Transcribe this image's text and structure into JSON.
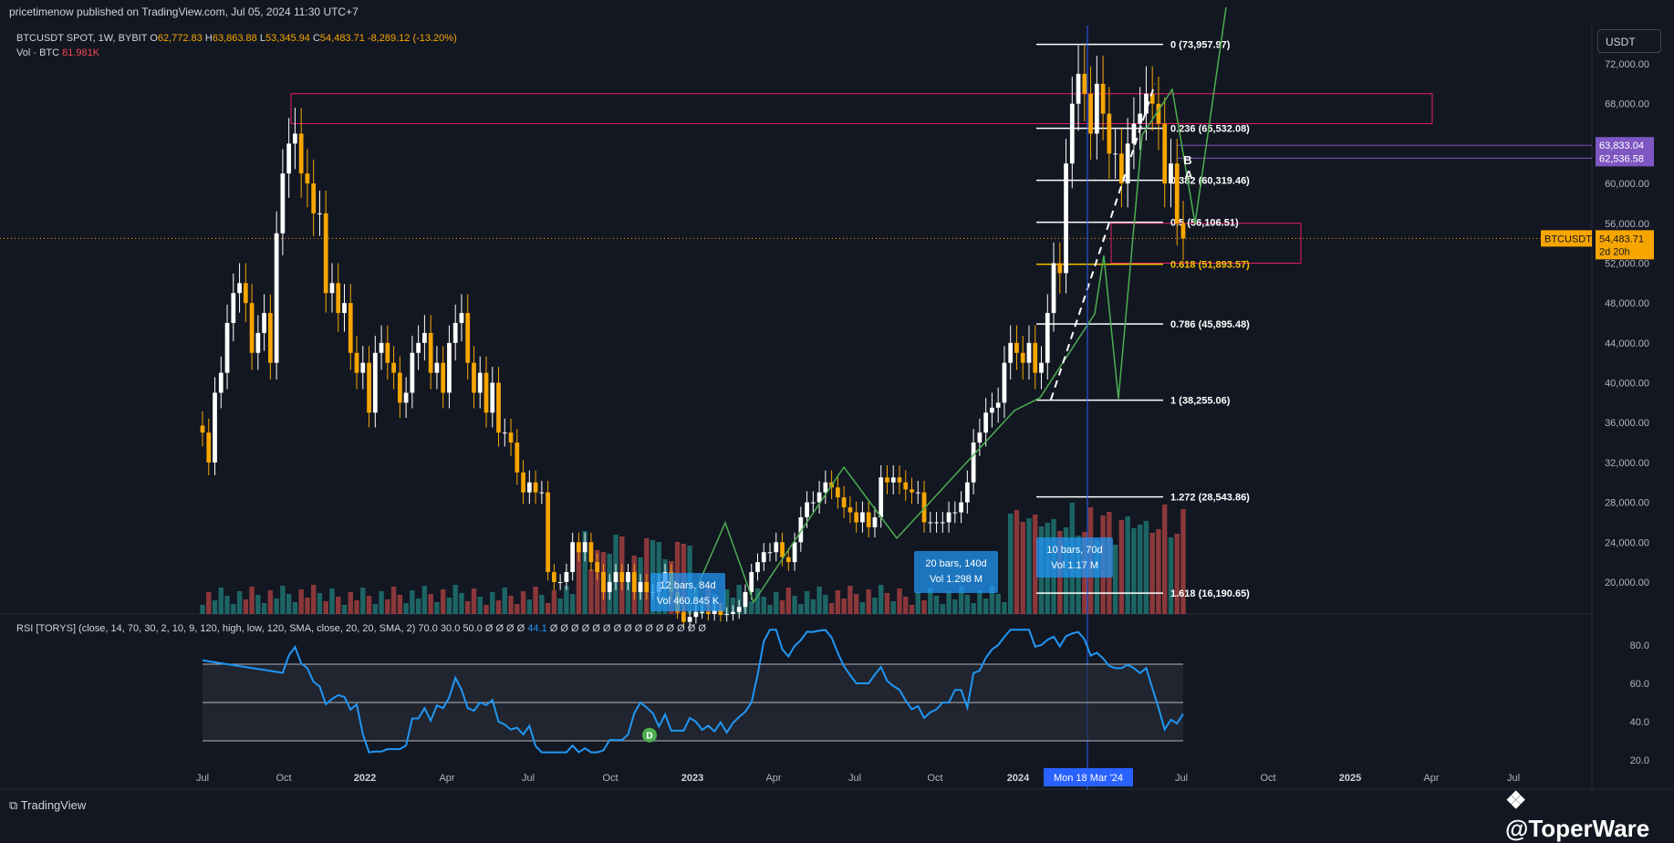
{
  "header": {
    "publisher": "pricetimenow published on TradingView.com, Jul 05, 2024 11:30 UTC+7",
    "symbol": "BTCUSDT SPOT, 1W, BYBIT",
    "open_label": "O",
    "open": "62,772.83",
    "high_label": "H",
    "high": "63,863.88",
    "low_label": "L",
    "low": "53,345.94",
    "close_label": "C",
    "close": "54,483.71",
    "change": "-8,289.12 (-13.20%)",
    "vol_label": "Vol · BTC",
    "vol": "81.981K"
  },
  "currency_button": "USDT",
  "rsi_header": {
    "text": "RSI [TORYS] (close, 14, 70, 30, 2, 10, 9, 120, high, low, 120, SMA, close, 20, 20, SMA, 2)  70.0  30.0  50.0  Ø  Ø  Ø  Ø",
    "value": "44.1",
    "tail": "Ø  Ø  Ø  Ø  Ø  Ø  Ø  Ø  Ø  Ø  Ø  Ø  Ø  Ø  Ø"
  },
  "footer": {
    "logo": "TradingView",
    "watermark": "@ToperWare"
  },
  "price_axis": [
    "72,000.00",
    "68,000.00",
    "64,000.00",
    "60,000.00",
    "56,000.00",
    "52,000.00",
    "48,000.00",
    "44,000.00",
    "40,000.00",
    "36,000.00",
    "32,000.00",
    "28,000.00",
    "24,000.00",
    "20,000.00"
  ],
  "price_tags": {
    "upper": "63,833.04",
    "lower": "62,536.58",
    "symbol": "BTCUSDT",
    "last": "54,483.71",
    "countdown": "2d 20h"
  },
  "rsi_axis": [
    "80.0",
    "60.0",
    "40.0",
    "20.0"
  ],
  "time_axis": [
    "Jul",
    "Oct",
    "2022",
    "Apr",
    "Jul",
    "Oct",
    "2023",
    "Apr",
    "Jul",
    "Oct",
    "2024",
    "Jul",
    "Oct",
    "2025",
    "Apr",
    "Jul"
  ],
  "crosshair_date": "Mon 18 Mar '24",
  "fib_levels": [
    {
      "label": "0 (73,957.97)"
    },
    {
      "label": "0.236 (65,532.08)"
    },
    {
      "label": "0.382 (60,319.46)"
    },
    {
      "label": "0.5 (56,106.51)"
    },
    {
      "label": "0.618 (51,893.57)"
    },
    {
      "label": "0.786 (45,895.48)"
    },
    {
      "label": "1 (38,255.06)"
    },
    {
      "label": "1.272 (28,543.86)"
    },
    {
      "label": "1.618 (16,190.65)"
    }
  ],
  "range_boxes": [
    {
      "bars": "12 bars, 84d",
      "vol": "Vol 460.845 K"
    },
    {
      "bars": "20 bars, 140d",
      "vol": "Vol 1.298 M"
    },
    {
      "bars": "10 bars, 70d",
      "vol": "Vol 1.17 M"
    }
  ],
  "pattern_labels": [
    "B",
    "A",
    "D"
  ],
  "colors": {
    "up": "#ffffff",
    "down": "#f7a600",
    "vol_up": "#26a69a",
    "vol_down": "#ef5350",
    "rsi": "#2196f3",
    "wave": "#4caf50",
    "zone": "#e91e63",
    "fib": "#ffffff",
    "fib_gold": "#f7c300",
    "crosshair": "#2962ff"
  },
  "chart_data": {
    "type": "candlestick",
    "title": "BTCUSDT SPOT, 1W, BYBIT",
    "x_range": [
      "2021-07",
      "2025-07"
    ],
    "ylim": [
      16000,
      76000
    ],
    "candles_close": [
      35000,
      32000,
      39000,
      41000,
      46000,
      49000,
      50000,
      48000,
      43000,
      45000,
      47000,
      42000,
      55000,
      61000,
      64000,
      65000,
      61000,
      60000,
      57000,
      57000,
      49000,
      50000,
      47000,
      48000,
      43000,
      41000,
      42000,
      37000,
      43000,
      44000,
      42000,
      41000,
      38000,
      39000,
      43000,
      44000,
      45000,
      41000,
      42000,
      39000,
      44000,
      46000,
      47000,
      42000,
      39000,
      41000,
      37000,
      40000,
      35000,
      35000,
      34000,
      31000,
      29000,
      30000,
      29000,
      29000,
      21000,
      20000,
      20000,
      21000,
      24000,
      23000,
      24000,
      22000,
      21000,
      19000,
      20000,
      21000,
      20000,
      21000,
      19000,
      20000,
      19000,
      19000,
      20000,
      21000,
      19000,
      17000,
      16000,
      16500,
      17000,
      17000,
      16800,
      17200,
      16700,
      16800,
      17000,
      17500,
      19000,
      21000,
      22000,
      23000,
      23000,
      24000,
      22500,
      22000,
      24000,
      26500,
      28000,
      28000,
      29000,
      30000,
      29500,
      28500,
      27500,
      27000,
      26000,
      27000,
      25500,
      26500,
      30500,
      30000,
      30500,
      30000,
      29300,
      29000,
      29000,
      26000,
      26000,
      26000,
      26000,
      27000,
      27000,
      28000,
      30000,
      34000,
      35000,
      37000,
      37500,
      38000,
      42000,
      44000,
      43000,
      42000,
      44000,
      41000,
      42000,
      47000,
      52000,
      51000,
      62000,
      68000,
      71000,
      69000,
      65000,
      70000,
      67000,
      63000,
      63000,
      60000,
      64000,
      66000,
      67000,
      69000,
      68000,
      66000,
      60000,
      62000,
      56000,
      54484
    ],
    "volume_series": "weekly volume bars (BTC)",
    "rsi": {
      "overbought": 70,
      "oversold": 30,
      "mid": 50,
      "last": 44.1,
      "ylim": [
        15,
        90
      ]
    },
    "fib_retracement": {
      "levels": [
        0,
        0.236,
        0.382,
        0.5,
        0.618,
        0.786,
        1,
        1.272,
        1.618
      ],
      "prices": [
        73957.97,
        65532.08,
        60319.46,
        56106.51,
        51893.57,
        45895.48,
        38255.06,
        28543.86,
        16190.65
      ]
    },
    "zones": [
      {
        "from": "2021-10",
        "to": "2024-09",
        "top": 69000,
        "bottom": 66000
      },
      {
        "from": "2024-04",
        "to": "2024-08",
        "top": 56000,
        "bottom": 52000
      }
    ],
    "horizontal_lines": [
      63833.04,
      62536.58
    ],
    "last_price": 54483.71
  }
}
